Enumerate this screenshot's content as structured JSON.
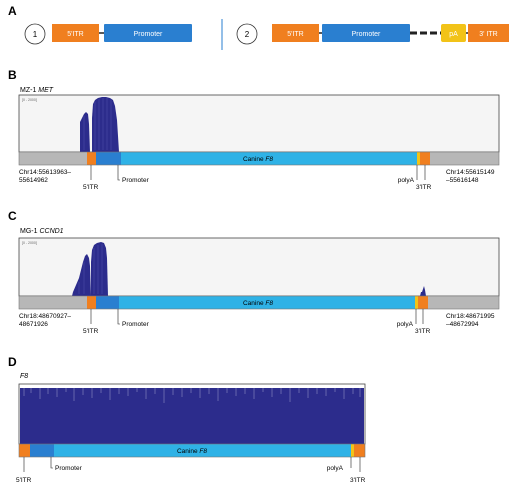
{
  "panels": {
    "A": {
      "letter": "A",
      "construct1": {
        "number": "1",
        "itr5": "5'ITR",
        "promoter": "Promoter"
      },
      "construct2": {
        "number": "2",
        "itr5": "5'ITR",
        "promoter": "Promoter",
        "polyA": "pA",
        "itr3": "3' ITR"
      }
    },
    "B": {
      "letter": "B",
      "sample": "MZ-1",
      "gene": "MET",
      "scale_text": "[0 - 2000]",
      "transgene": "Canine",
      "transgene_gene": "F8",
      "left_locus_1": "Chr14:55613963–",
      "left_locus_2": "55614962",
      "right_locus_1": "Chr14:55615149",
      "right_locus_2": "–55616148",
      "itr5": "5'ITR",
      "promoter": "Promoter",
      "polyA": "polyA",
      "itr3": "3'ITR"
    },
    "C": {
      "letter": "C",
      "sample": "MG-1",
      "gene": "CCND1",
      "scale_text": "[0 - 2000]",
      "transgene": "Canine",
      "transgene_gene": "F8",
      "left_locus_1": "Chr18:48670927–",
      "left_locus_2": "48671926",
      "right_locus_1": "Chr18:48671995",
      "right_locus_2": "–48672994",
      "itr5": "5'ITR",
      "promoter": "Promoter",
      "polyA": "polyA",
      "itr3": "3'ITR"
    },
    "D": {
      "letter": "D",
      "gene": "F8",
      "transgene": "Canine",
      "transgene_gene": "F8",
      "itr5": "5'ITR",
      "promoter": "Promoter",
      "polyA": "polyA",
      "itr3": "3'ITR"
    }
  },
  "colors": {
    "itr": "#f07f1f",
    "promoter": "#2a7fd0",
    "transgene": "#2fb2e6",
    "polyA": "#f2c318",
    "genomic": "#b7b7b7",
    "coverage": "#2c2c8c"
  }
}
